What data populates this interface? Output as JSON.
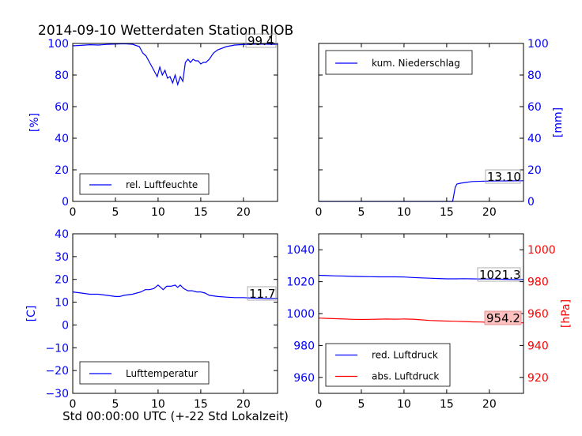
{
  "figure": {
    "title": "2014-09-10 Wetterdaten Station RJOB",
    "xlabel": "Std 00:00:00 UTC (+-22 Std Lokalzeit)"
  },
  "chart_data": [
    {
      "id": "humidity",
      "type": "line",
      "ylabel": "[%]",
      "axis_color": "#0000ff",
      "xlim": [
        0,
        24
      ],
      "ylim": [
        0,
        100
      ],
      "yticks": [
        0,
        20,
        40,
        60,
        80,
        100
      ],
      "xticks": [
        0,
        5,
        10,
        15,
        20
      ],
      "legend": "lower-left",
      "series": [
        {
          "name": "rel. Luftfeuchte",
          "color": "#0000ff",
          "x": [
            0,
            1,
            2,
            3,
            4,
            5,
            6,
            7,
            7.8,
            8.2,
            8.6,
            9.0,
            9.3,
            9.6,
            9.9,
            10.2,
            10.5,
            10.8,
            11.1,
            11.4,
            11.7,
            12.0,
            12.3,
            12.6,
            12.9,
            13.2,
            13.5,
            13.8,
            14.1,
            14.4,
            14.7,
            15.0,
            15.3,
            15.6,
            16.0,
            16.5,
            17,
            18,
            19,
            20,
            21,
            22,
            23,
            24
          ],
          "y": [
            98.5,
            98.8,
            99.2,
            99.0,
            99.4,
            99.6,
            99.8,
            99.5,
            98,
            94,
            92,
            88,
            85,
            82,
            79,
            85,
            80,
            83,
            78,
            79,
            75,
            80,
            74,
            79,
            76,
            88,
            90,
            88,
            90,
            89,
            89,
            87,
            88,
            88,
            90,
            94,
            96,
            98,
            99,
            99.3,
            99.5,
            99.6,
            99.5,
            99.4
          ]
        }
      ],
      "annotation": "99.4"
    },
    {
      "id": "precip",
      "type": "line",
      "ylabel": "[mm]",
      "axis_color": "#0000ff",
      "y_axis_side": "right",
      "xlim": [
        0,
        24
      ],
      "ylim": [
        0,
        100
      ],
      "yticks": [
        0,
        20,
        40,
        60,
        80,
        100
      ],
      "xticks": [
        0,
        5,
        10,
        15,
        20
      ],
      "legend": "upper-left",
      "series": [
        {
          "name": "kum. Niederschlag",
          "color": "#0000ff",
          "x": [
            0,
            15.7,
            16.0,
            16.2,
            16.6,
            17.2,
            18,
            20,
            22,
            24
          ],
          "y": [
            0,
            0,
            9,
            11,
            11.5,
            12,
            12.6,
            12.9,
            13.0,
            13.1
          ]
        }
      ],
      "annotation": "13.10"
    },
    {
      "id": "temperature",
      "type": "line",
      "ylabel": "[C]",
      "axis_color": "#0000ff",
      "xlim": [
        0,
        24
      ],
      "ylim": [
        -30,
        40
      ],
      "yticks": [
        -30,
        -20,
        -10,
        0,
        10,
        20,
        30,
        40
      ],
      "xticks": [
        0,
        5,
        10,
        15,
        20
      ],
      "legend": "lower-left",
      "series": [
        {
          "name": "Lufttemperatur",
          "color": "#0000ff",
          "x": [
            0,
            1,
            2,
            3,
            4,
            5,
            5.5,
            6,
            7,
            8,
            8.5,
            9,
            9.5,
            10,
            10.3,
            10.6,
            11,
            11.5,
            12,
            12.3,
            12.6,
            13,
            13.5,
            14,
            14.5,
            15,
            15.5,
            16,
            17,
            18,
            19,
            20,
            21,
            22,
            23,
            24
          ],
          "y": [
            14.5,
            14,
            13.5,
            13.5,
            13,
            12.5,
            12.5,
            13,
            13.5,
            14.5,
            15.5,
            15.5,
            16,
            17.5,
            16.5,
            15.5,
            17,
            17,
            17.5,
            16.5,
            17.5,
            16,
            15,
            15,
            14.5,
            14.5,
            14,
            13,
            12.5,
            12.2,
            12,
            12,
            11.8,
            11.7,
            11.6,
            11.7
          ]
        }
      ],
      "annotation": "11.7"
    },
    {
      "id": "pressure",
      "type": "line",
      "ylabel_left": "",
      "ylabel_right": "[hPa]",
      "left_axis_color": "#0000ff",
      "right_axis_color": "#ff0000",
      "xlim": [
        0,
        24
      ],
      "ylim_left": [
        950,
        1050
      ],
      "ylim_right": [
        910,
        1010
      ],
      "yticks_left": [
        960,
        980,
        1000,
        1020,
        1040
      ],
      "yticks_right": [
        920,
        940,
        960,
        980,
        1000
      ],
      "xticks": [
        0,
        5,
        10,
        15,
        20
      ],
      "legend": "lower-left",
      "series": [
        {
          "name": "red. Luftdruck",
          "color": "#0000ff",
          "axis": "left",
          "x": [
            0,
            1,
            2,
            3,
            4,
            5,
            6,
            7,
            8,
            9,
            10,
            11,
            12,
            13,
            14,
            15,
            16,
            17,
            18,
            19,
            20,
            21,
            22,
            23,
            24
          ],
          "y": [
            1024,
            1023.8,
            1023.6,
            1023.5,
            1023.3,
            1023.2,
            1023.1,
            1023.0,
            1023.0,
            1023.0,
            1022.9,
            1022.6,
            1022.4,
            1022.2,
            1022.0,
            1021.8,
            1021.8,
            1021.9,
            1021.8,
            1021.7,
            1021.7,
            1021.6,
            1021.5,
            1021.4,
            1021.3
          ]
        },
        {
          "name": "abs. Luftdruck",
          "color": "#ff0000",
          "axis": "right",
          "x": [
            0,
            1,
            2,
            3,
            4,
            5,
            6,
            7,
            8,
            9,
            10,
            11,
            12,
            13,
            14,
            15,
            16,
            17,
            18,
            19,
            20,
            21,
            22,
            23,
            24
          ],
          "y": [
            957.2,
            957.0,
            956.8,
            956.6,
            956.4,
            956.3,
            956.4,
            956.5,
            956.6,
            956.5,
            956.6,
            956.5,
            956.1,
            955.7,
            955.5,
            955.3,
            955.2,
            955.0,
            954.8,
            954.7,
            954.5,
            954.4,
            954.3,
            954.2,
            954.2
          ]
        }
      ],
      "annotation_left": "1021.3",
      "annotation_right": "954.2"
    }
  ]
}
